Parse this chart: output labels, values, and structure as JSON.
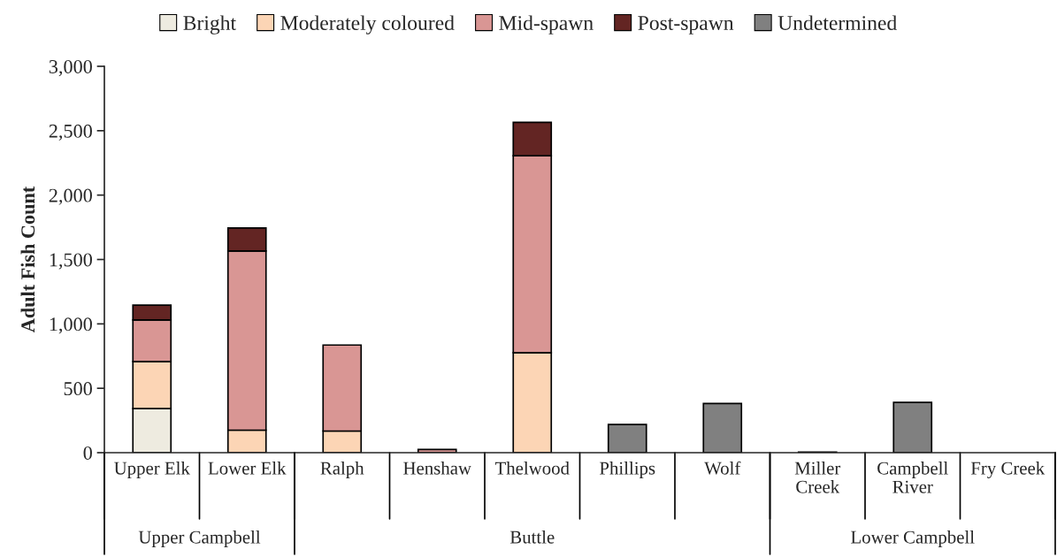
{
  "chart_data": {
    "type": "bar",
    "stacked": true,
    "ylabel": "Adult Fish Count",
    "categories": [
      "Upper Elk",
      "Lower Elk",
      "Ralph",
      "Henshaw",
      "Thelwood",
      "Phillips",
      "Wolf",
      "Miller Creek",
      "Campbell River",
      "Fry Creek"
    ],
    "series": [
      {
        "name": "Bright",
        "color": "#eeebe0",
        "values": [
          342,
          null,
          null,
          null,
          null,
          null,
          null,
          null,
          null,
          null
        ]
      },
      {
        "name": "Moderately coloured",
        "color": "#fcd5b5",
        "values": [
          366,
          175,
          168,
          null,
          777,
          null,
          null,
          null,
          null,
          null
        ]
      },
      {
        "name": "Mid-spawn",
        "color": "#d99694",
        "values": [
          323,
          1391,
          668,
          25,
          1529,
          null,
          null,
          null,
          null,
          null
        ]
      },
      {
        "name": "Post-spawn",
        "color": "#632523",
        "values": [
          115,
          178,
          null,
          null,
          259,
          null,
          null,
          null,
          null,
          null
        ]
      },
      {
        "name": "Undetermined",
        "color": "#808080",
        "values": [
          null,
          null,
          null,
          null,
          null,
          219,
          382,
          5,
          390,
          null
        ]
      }
    ],
    "ylim": [
      0,
      3000
    ],
    "yticks": [
      0,
      500,
      {
        "value": 1000,
        "label": "1,000"
      },
      {
        "value": 1500,
        "label": "1,500"
      },
      {
        "value": 2000,
        "label": "2,000"
      },
      {
        "value": 2500,
        "label": "2,500"
      },
      {
        "value": 3000,
        "label": "3,000"
      }
    ],
    "annotations": [
      "Upper Campbell",
      "Buttle",
      "Lower Campbell"
    ],
    "legend": "top",
    "grid": false
  }
}
